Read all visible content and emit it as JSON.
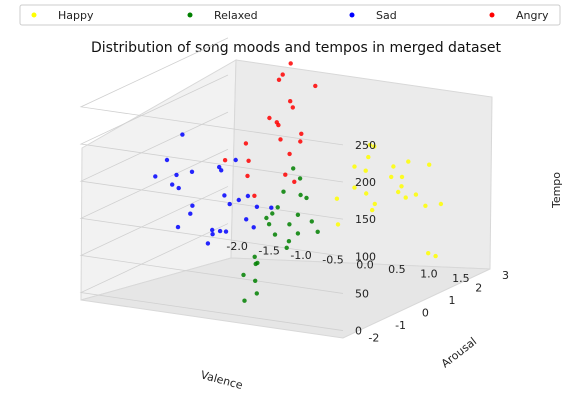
{
  "chart_data": {
    "type": "scatter",
    "title": "Distribution of song moods and tempos in merged dataset",
    "xlabel": "Valence",
    "ylabel": "Arousal",
    "zlabel": "Tempo",
    "xlim": [
      -2.3,
      1.8
    ],
    "ylim": [
      -2.5,
      3.0
    ],
    "zlim": [
      -10,
      270
    ],
    "x_ticks": [
      "-2.0",
      "-1.5",
      "-1.0",
      "-0.5",
      "0.0",
      "0.5",
      "1.0",
      "1.5"
    ],
    "y_ticks": [
      "-2",
      "-1",
      "0",
      "1",
      "2",
      "3"
    ],
    "z_ticks": [
      "0",
      "50",
      "100",
      "150",
      "200",
      "250"
    ],
    "legend_position": "top",
    "series": [
      {
        "name": "Happy",
        "color": "#ffff00",
        "x": [
          0.45,
          0.6,
          0.75,
          0.9,
          1.05,
          1.2,
          1.35,
          1.5,
          0.55,
          0.8,
          1.0,
          1.25,
          1.45,
          0.65,
          0.95,
          1.15,
          1.4,
          0.5,
          0.85,
          1.1,
          1.3,
          0.7,
          1.2,
          1.0
        ],
        "y": [
          0.5,
          0.8,
          1.2,
          0.6,
          1.5,
          1.0,
          1.8,
          1.3,
          0.3,
          0.9,
          1.6,
          0.7,
          2.0,
          1.1,
          0.4,
          1.4,
          0.9,
          1.7,
          0.2,
          1.9,
          0.5,
          1.3,
          2.4,
          2.6
        ],
        "z": [
          110,
          150,
          95,
          170,
          130,
          120,
          145,
          100,
          80,
          180,
          115,
          160,
          90,
          140,
          125,
          105,
          165,
          75,
          135,
          100,
          150,
          170,
          10,
          8
        ]
      },
      {
        "name": "Relaxed",
        "color": "#008000",
        "x": [
          0.1,
          0.2,
          0.3,
          0.0,
          0.15,
          0.25,
          -0.05,
          0.35,
          0.1,
          0.2,
          0.05,
          0.3,
          0.15,
          0.25,
          0.0,
          0.1,
          0.2,
          0.3,
          0.4,
          0.05,
          0.15,
          0.35,
          0.25,
          0.1
        ],
        "y": [
          -1.2,
          -0.9,
          -0.6,
          -1.5,
          -1.0,
          -0.4,
          -1.8,
          -0.2,
          -1.3,
          -0.7,
          -1.6,
          -0.5,
          -1.1,
          -0.8,
          -1.4,
          -0.3,
          -1.9,
          -0.6,
          -0.1,
          -2.0,
          -1.2,
          -0.4,
          -0.9,
          -1.7
        ],
        "z": [
          100,
          140,
          80,
          60,
          120,
          150,
          40,
          90,
          110,
          70,
          30,
          130,
          85,
          95,
          50,
          160,
          20,
          105,
          75,
          10,
          115,
          125,
          65,
          55
        ]
      },
      {
        "name": "Sad",
        "color": "#0000ff",
        "x": [
          -2.1,
          -2.0,
          -1.9,
          -1.5,
          -1.3,
          -1.1,
          -0.9,
          -0.7,
          -0.5,
          -0.3,
          -0.1,
          -1.4,
          -1.0,
          -0.6,
          -0.2,
          -1.2,
          -0.8,
          -0.4,
          -1.6,
          -0.9,
          -0.5,
          -1.1,
          -0.7,
          -0.3,
          -1.8,
          -0.6
        ],
        "y": [
          -0.2,
          0.0,
          0.2,
          -1.0,
          -0.8,
          -1.2,
          -0.6,
          -1.4,
          -0.9,
          -1.1,
          -1.3,
          -0.5,
          -0.7,
          -1.0,
          -0.4,
          -1.5,
          -0.3,
          -0.8,
          -0.6,
          -1.1,
          -1.6,
          -0.2,
          -0.9,
          -0.7,
          0.1,
          -1.2
        ],
        "z": [
          120,
          140,
          100,
          130,
          90,
          110,
          150,
          80,
          120,
          100,
          95,
          140,
          70,
          115,
          105,
          85,
          160,
          125,
          135,
          60,
          90,
          145,
          75,
          110,
          175,
          130
        ]
      },
      {
        "name": "Angry",
        "color": "#ff0000",
        "x": [
          -1.3,
          -1.1,
          -0.9,
          -0.7,
          -0.5,
          -0.3,
          -1.0,
          -0.8,
          -0.6,
          -0.4,
          -1.2,
          -0.9,
          -0.7,
          -0.5,
          -0.8,
          -0.6,
          -1.1,
          -0.4,
          -0.9,
          -0.7
        ],
        "y": [
          0.5,
          0.8,
          1.2,
          1.5,
          1.0,
          0.7,
          1.8,
          1.3,
          0.9,
          0.6,
          1.1,
          2.0,
          1.6,
          1.4,
          0.4,
          2.2,
          0.9,
          1.2,
          1.7,
          1.0
        ],
        "z": [
          140,
          160,
          190,
          210,
          150,
          120,
          230,
          180,
          170,
          130,
          110,
          250,
          200,
          160,
          100,
          220,
          135,
          175,
          240,
          190
        ]
      }
    ]
  }
}
